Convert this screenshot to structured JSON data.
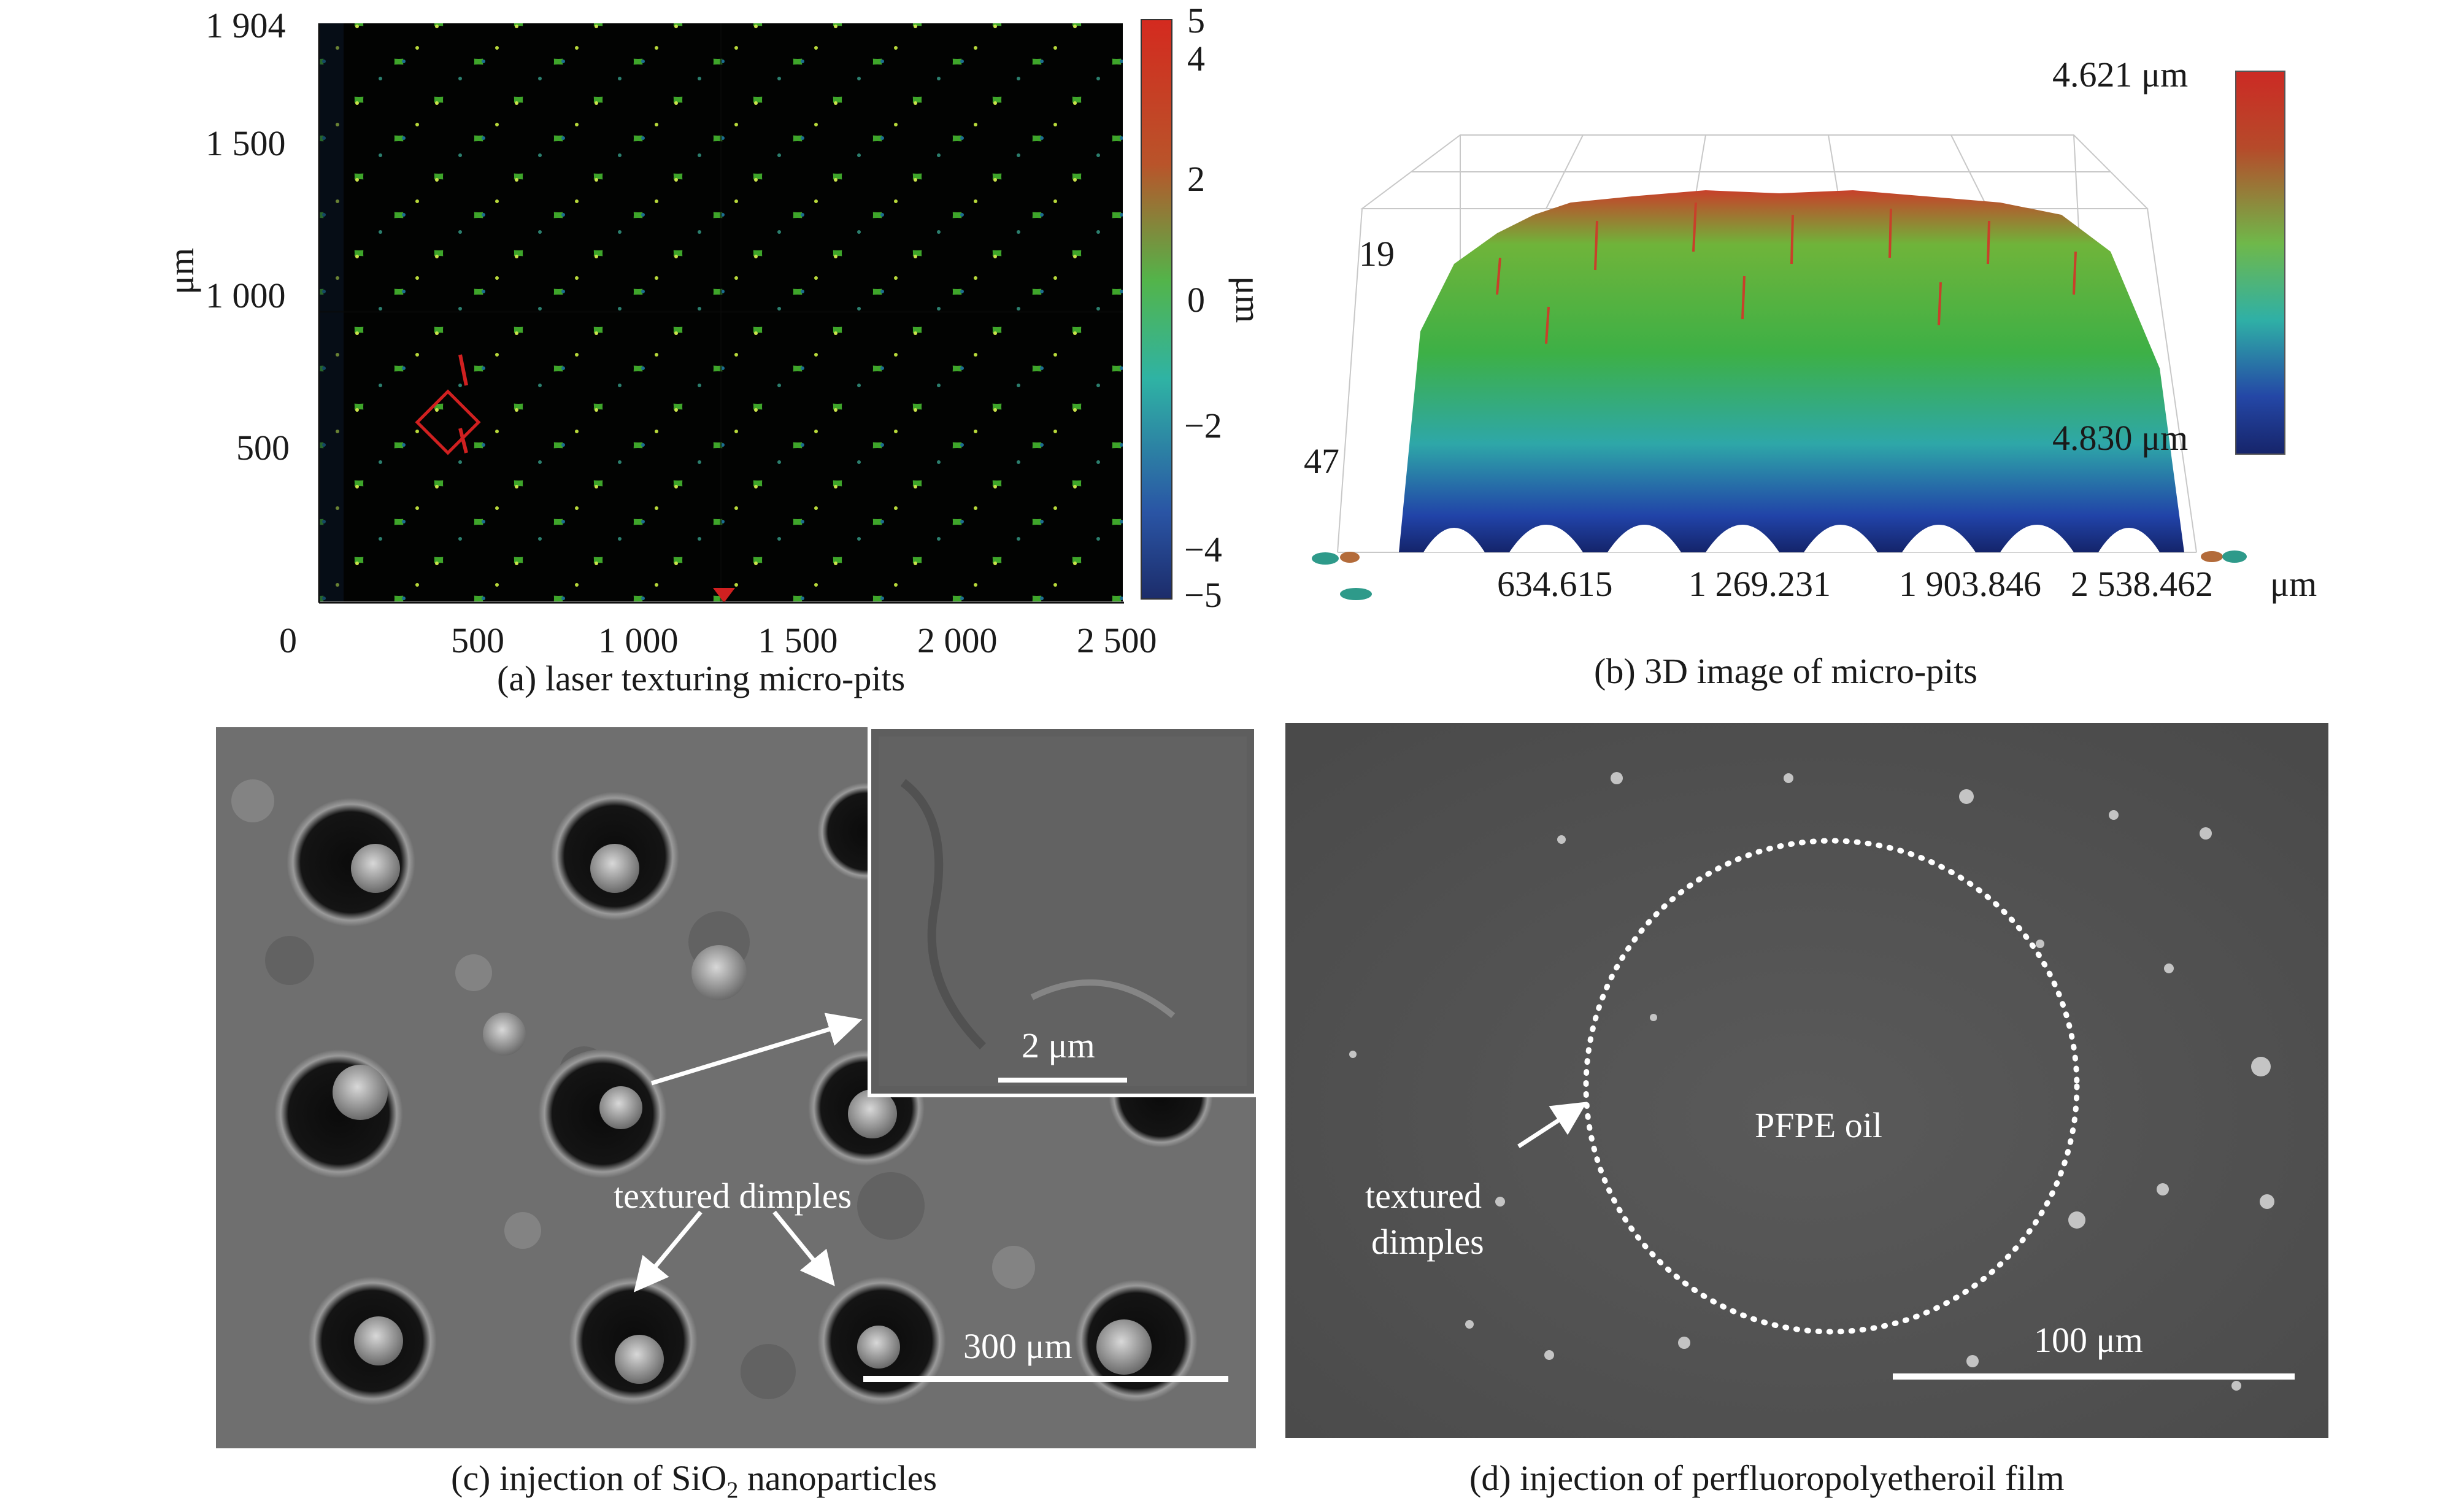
{
  "panel_a": {
    "caption": "(a) laser texturing micro-pits",
    "y_ticks": [
      "1 904",
      "1 500",
      "1 000",
      "500"
    ],
    "x_ticks": [
      "0",
      "500",
      "1 000",
      "1 500",
      "2 000",
      "2 500"
    ],
    "y_unit": "μm",
    "colorbar_ticks": [
      "5",
      "4",
      "2",
      "0",
      "−2",
      "−4",
      "−5"
    ],
    "colorbar_unit": "μm",
    "colors": {
      "background": "#050a08",
      "texture": "#3ea52a",
      "pit": "#020302",
      "marker": "#d02020"
    }
  },
  "panel_b": {
    "caption": "(b) 3D image of micro-pits",
    "colorbar_max": "4.621 μm",
    "colorbar_min": "4.830 μm",
    "x_ticks": [
      "634.615",
      "1 269.231",
      "1 903.846",
      "2 538.462"
    ],
    "x_unit": "μm",
    "y_left_top": "19",
    "y_left_bottom": "47"
  },
  "panel_c": {
    "caption": "(c) injection of SiO",
    "caption_sub": "2",
    "caption_tail": " nanoparticles",
    "inset_scale": "2 μm",
    "label": "textured dimples",
    "scale": "300 μm"
  },
  "panel_d": {
    "caption": "(d) injection of perfluoropolyetheroil film",
    "label_line1": "textured",
    "label_line2": "dimples",
    "oil_label": "PFPE oil",
    "scale": "100 μm"
  }
}
